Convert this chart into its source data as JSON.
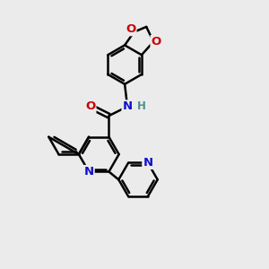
{
  "bg_color": "#ebebeb",
  "bond_color": "#000000",
  "bond_width": 1.8,
  "N_color": "#1010cc",
  "O_color": "#cc0000",
  "NH_color": "#4a9090",
  "figsize": [
    3.0,
    3.0
  ],
  "dpi": 100,
  "xlim": [
    0,
    10
  ],
  "ylim": [
    0,
    10
  ]
}
